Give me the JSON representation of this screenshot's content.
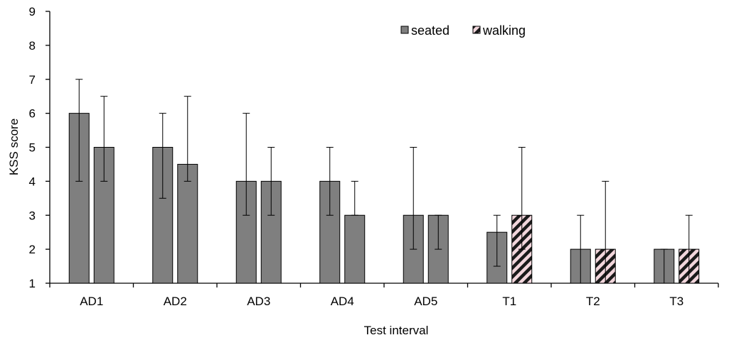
{
  "chart_data": {
    "type": "bar",
    "title": "",
    "xlabel": "Test interval",
    "ylabel": "KSS score",
    "ylim": [
      1,
      9
    ],
    "yticks": [
      1,
      2,
      3,
      4,
      5,
      6,
      7,
      8,
      9
    ],
    "categories": [
      "AD1",
      "AD2",
      "AD3",
      "AD4",
      "AD5",
      "T1",
      "T2",
      "T3"
    ],
    "legend_position": "top-right",
    "grid": false,
    "series": [
      {
        "name": "seated",
        "fill": "gray",
        "color": "#7f7f7f",
        "values": [
          6,
          5,
          4,
          4,
          3,
          2.5,
          2,
          2
        ],
        "err_low": [
          4,
          3.5,
          3,
          3,
          2,
          1.5,
          1,
          1
        ],
        "err_high": [
          7,
          6,
          6,
          5,
          5,
          3,
          3,
          2
        ]
      },
      {
        "name": "walking",
        "fill": "gray / diagonal hatch (T1–T3)",
        "color": "#7f7f7f",
        "hatch_color": "#f2d6dc",
        "hatched_categories": [
          "T1",
          "T2",
          "T3"
        ],
        "values": [
          5,
          4.5,
          4,
          3,
          3,
          3,
          2,
          2
        ],
        "err_low": [
          4,
          4,
          3,
          3,
          2,
          2,
          1,
          1
        ],
        "err_high": [
          6.5,
          6.5,
          5,
          4,
          3,
          5,
          4,
          3
        ]
      }
    ]
  }
}
